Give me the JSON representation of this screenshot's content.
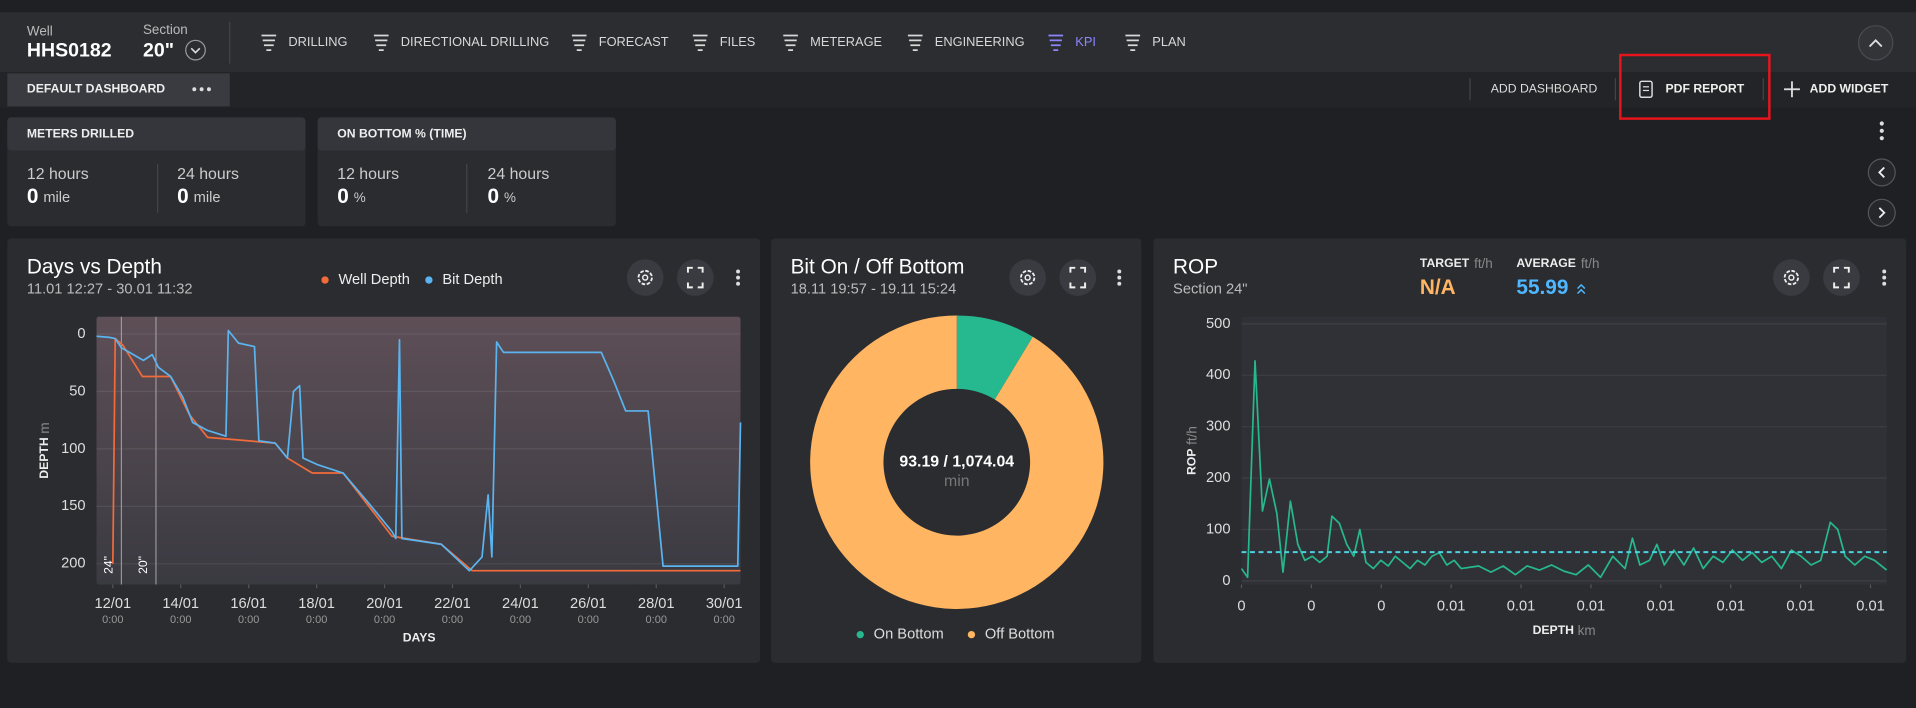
{
  "header": {
    "well_label": "Well",
    "well": "HHS0182",
    "section_label": "Section",
    "section": "20\"",
    "nav": [
      {
        "label": "DRILLING"
      },
      {
        "label": "DIRECTIONAL DRILLING"
      },
      {
        "label": "FORECAST"
      },
      {
        "label": "FILES"
      },
      {
        "label": "METERAGE"
      },
      {
        "label": "ENGINEERING"
      },
      {
        "label": "KPI",
        "active": true
      },
      {
        "label": "PLAN"
      }
    ]
  },
  "toolbar": {
    "tab": "DEFAULT DASHBOARD",
    "actions": [
      "ADD DASHBOARD",
      "PDF REPORT",
      "ADD WIDGET"
    ]
  },
  "kpis": [
    {
      "title": "METERS DRILLED",
      "items": [
        {
          "label": "12 hours",
          "value": 0,
          "unit": "mile"
        },
        {
          "label": "24 hours",
          "value": 0,
          "unit": "mile"
        }
      ]
    },
    {
      "title": "ON BOTTOM % (TIME)",
      "items": [
        {
          "label": "12 hours",
          "value": 0,
          "unit": "%"
        },
        {
          "label": "24 hours",
          "value": 0,
          "unit": "%"
        }
      ]
    }
  ],
  "chart_data": [
    {
      "type": "line",
      "title": "Days vs Depth",
      "subtitle": "11.01 12:27 - 30.01 11:32",
      "xlabel": "DAYS",
      "ylabel": "DEPTH",
      "yunit": "m",
      "xlim": [
        11.52,
        30.48
      ],
      "ylim": [
        218,
        -15
      ],
      "grid": true,
      "xticks": [
        {
          "value": 12,
          "label": "12/01",
          "time": "0:00"
        },
        {
          "value": 14,
          "label": "14/01",
          "time": "0:00"
        },
        {
          "value": 16,
          "label": "16/01",
          "time": "0:00"
        },
        {
          "value": 18,
          "label": "18/01",
          "time": "0:00"
        },
        {
          "value": 20,
          "label": "20/01",
          "time": "0:00"
        },
        {
          "value": 22,
          "label": "22/01",
          "time": "0:00"
        },
        {
          "value": 24,
          "label": "24/01",
          "time": "0:00"
        },
        {
          "value": 26,
          "label": "26/01",
          "time": "0:00"
        },
        {
          "value": 28,
          "label": "28/01",
          "time": "0:00"
        },
        {
          "value": 30,
          "label": "30/01",
          "time": "0:00"
        }
      ],
      "yticks": [
        0,
        50,
        100,
        150,
        200
      ],
      "markers": [
        {
          "x": 12.25,
          "label": "24\""
        },
        {
          "x": 13.27,
          "label": "20\""
        }
      ],
      "series": [
        {
          "name": "Well Depth",
          "color": "#f26b3a",
          "x": [
            12.0,
            12.07,
            12.3,
            12.87,
            13.7,
            14.25,
            14.79,
            16.78,
            17.14,
            17.87,
            18.78,
            20.22,
            21.67,
            22.58,
            30.48
          ],
          "values": [
            200,
            4,
            10,
            37,
            37,
            70,
            90,
            95,
            108,
            121,
            121,
            176,
            183,
            206,
            206
          ]
        },
        {
          "name": "Bit Depth",
          "color": "#5ab4f0",
          "x": [
            11.52,
            11.9,
            12.07,
            12.25,
            12.9,
            13.16,
            13.34,
            13.7,
            14.06,
            14.35,
            14.79,
            15.33,
            15.4,
            15.7,
            16.17,
            16.3,
            16.78,
            17.14,
            17.32,
            17.5,
            17.6,
            18.05,
            18.78,
            19.5,
            20.22,
            20.33,
            20.44,
            20.51,
            21.67,
            22.5,
            22.87,
            23.05,
            23.16,
            23.3,
            23.5,
            26.38,
            26.75,
            27.1,
            27.76,
            28.2,
            30.4,
            30.48
          ],
          "values": [
            2,
            3,
            4,
            12,
            23,
            18,
            29,
            37,
            55,
            77,
            84,
            89,
            -3,
            8,
            11,
            93,
            95,
            108,
            50,
            45,
            108,
            114,
            121,
            146,
            172,
            178,
            5,
            178,
            183,
            206,
            194,
            140,
            194,
            7,
            16,
            16,
            41,
            67,
            67,
            202,
            202,
            77
          ]
        }
      ]
    },
    {
      "type": "pie",
      "title": "Bit On / Off Bottom",
      "subtitle": "18.11 19:57 - 19.11 15:24",
      "donut": true,
      "categories": [
        "On Bottom",
        "Off Bottom"
      ],
      "values": [
        93.19,
        980.85
      ],
      "colors": [
        "#26b88e",
        "#ffb561"
      ],
      "center_label": "93.19 / 1,074.04",
      "center_unit": "min"
    },
    {
      "type": "line",
      "title": "ROP",
      "subtitle": "Section 24\"",
      "target_label": "TARGET",
      "target": "N/A",
      "average_label": "AVERAGE",
      "average": 55.99,
      "kpi_unit": "ft/h",
      "average_color": "#4dd0e1",
      "xlabel": "DEPTH",
      "xunit": "km",
      "ylabel": "ROP",
      "yunit": "ft/h",
      "grid": true,
      "xlim": [
        0.0003,
        0.01507
      ],
      "ylim": [
        -7,
        514
      ],
      "xticks": [
        {
          "value": 0.0003,
          "label": "0"
        },
        {
          "value": 0.0019,
          "label": "0"
        },
        {
          "value": 0.0035,
          "label": "0"
        },
        {
          "value": 0.0051,
          "label": "0.01"
        },
        {
          "value": 0.0067,
          "label": "0.01"
        },
        {
          "value": 0.0083,
          "label": "0.01"
        },
        {
          "value": 0.0099,
          "label": "0.01"
        },
        {
          "value": 0.0115,
          "label": "0.01"
        },
        {
          "value": 0.0131,
          "label": "0.01"
        },
        {
          "value": 0.0147,
          "label": "0.01"
        }
      ],
      "yticks": [
        0,
        100,
        200,
        300,
        400,
        500
      ],
      "series": [
        {
          "color": "#26b88e",
          "x": [
            0.0003,
            0.00044,
            0.00061,
            0.00078,
            0.00094,
            0.00111,
            0.00125,
            0.00142,
            0.00159,
            0.00175,
            0.00192,
            0.00209,
            0.00226,
            0.00237,
            0.00254,
            0.00271,
            0.00287,
            0.00301,
            0.00315,
            0.00332,
            0.00349,
            0.00366,
            0.00382,
            0.00399,
            0.00416,
            0.00433,
            0.0045,
            0.00466,
            0.00483,
            0.005,
            0.00517,
            0.00533,
            0.00573,
            0.00601,
            0.00629,
            0.00657,
            0.00684,
            0.00712,
            0.0074,
            0.00768,
            0.00796,
            0.00824,
            0.00852,
            0.0088,
            0.00908,
            0.00925,
            0.00942,
            0.00964,
            0.00981,
            0.00998,
            0.0102,
            0.01043,
            0.01065,
            0.01087,
            0.0111,
            0.01132,
            0.01154,
            0.01177,
            0.01199,
            0.01221,
            0.01244,
            0.01266,
            0.01289,
            0.01311,
            0.01334,
            0.01356,
            0.01378,
            0.01395,
            0.01412,
            0.01434,
            0.01457,
            0.01479,
            0.01507
          ],
          "values": [
            24,
            7,
            428,
            136,
            198,
            131,
            17,
            155,
            71,
            40,
            48,
            36,
            48,
            126,
            112,
            71,
            48,
            100,
            36,
            24,
            40,
            29,
            48,
            36,
            24,
            40,
            31,
            48,
            55,
            31,
            40,
            24,
            29,
            17,
            29,
            12,
            29,
            21,
            31,
            19,
            12,
            31,
            7,
            48,
            24,
            83,
            31,
            40,
            71,
            31,
            60,
            31,
            64,
            24,
            48,
            36,
            60,
            40,
            55,
            36,
            48,
            24,
            60,
            48,
            31,
            40,
            114,
            100,
            48,
            31,
            48,
            40,
            21
          ]
        }
      ]
    }
  ]
}
